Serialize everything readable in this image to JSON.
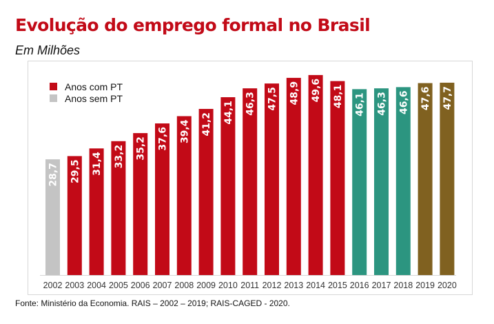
{
  "title": "Evolução do emprego formal no Brasil",
  "subtitle": "Em Milhões",
  "source": "Fonte: Ministério da Economia. RAIS – 2002 – 2019; RAIS-CAGED - 2020.",
  "legend": [
    {
      "label": "Anos com PT",
      "color": "#c20a17"
    },
    {
      "label": "Anos sem PT",
      "color": "#c4c4c4"
    }
  ],
  "colors": {
    "pt": "#c20a17",
    "pre_pt": "#c4c4c4",
    "temer": "#2c9580",
    "bolsonaro": "#806120",
    "axis": "#d6d6d6",
    "tick_text": "#333333",
    "label_text": "#ffffff"
  },
  "chart_data": {
    "type": "bar",
    "title": "Evolução do emprego formal no Brasil",
    "subtitle": "Em Milhões",
    "xlabel": "",
    "ylabel": "",
    "ylim": [
      0,
      52
    ],
    "grid": false,
    "legend_position": "top-left",
    "categories": [
      "2002",
      "2003",
      "2004",
      "2005",
      "2006",
      "2007",
      "2008",
      "2009",
      "2010",
      "2011",
      "2012",
      "2013",
      "2014",
      "2015",
      "2016",
      "2017",
      "2018",
      "2019",
      "2020"
    ],
    "values": [
      28.7,
      29.5,
      31.4,
      33.2,
      35.2,
      37.6,
      39.4,
      41.2,
      44.1,
      46.3,
      47.5,
      48.9,
      49.6,
      48.1,
      46.1,
      46.3,
      46.6,
      47.6,
      47.7
    ],
    "value_labels": [
      "28,7",
      "29,5",
      "31,4",
      "33,2",
      "35,2",
      "37,6",
      "39,4",
      "41,2",
      "44,1",
      "46,3",
      "47,5",
      "48,9",
      "49,6",
      "48,1",
      "46,1",
      "46,3",
      "46,6",
      "47,6",
      "47,7"
    ],
    "bar_groups": [
      "pre_pt",
      "pt",
      "pt",
      "pt",
      "pt",
      "pt",
      "pt",
      "pt",
      "pt",
      "pt",
      "pt",
      "pt",
      "pt",
      "pt",
      "temer",
      "temer",
      "temer",
      "bolsonaro",
      "bolsonaro"
    ]
  }
}
